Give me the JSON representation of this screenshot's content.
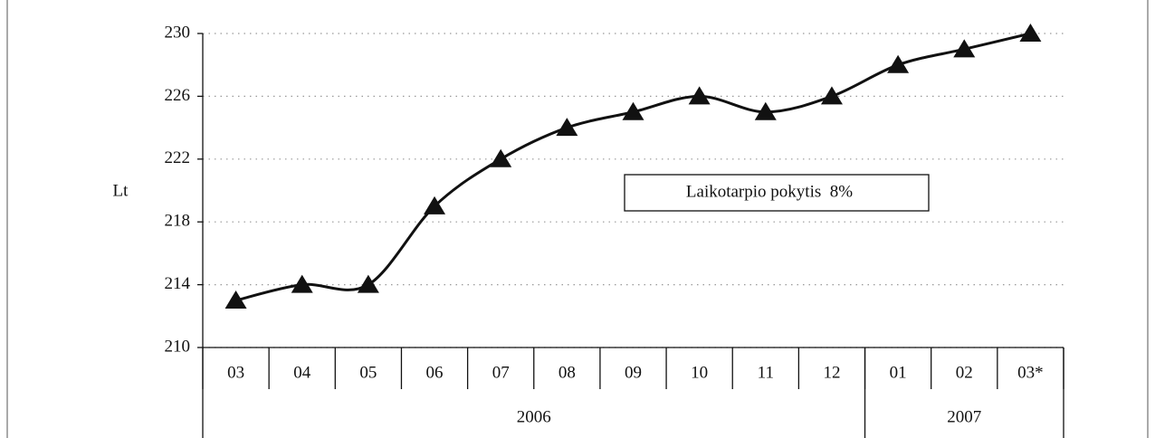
{
  "chart_data": {
    "type": "line",
    "y_label": "Lt",
    "annotation": "Laikotarpio pokytis  8%",
    "categories": [
      "03",
      "04",
      "05",
      "06",
      "07",
      "08",
      "09",
      "10",
      "11",
      "12",
      "01",
      "02",
      "03*"
    ],
    "groups": [
      {
        "label": "2006",
        "span": 10
      },
      {
        "label": "2007",
        "span": 3
      }
    ],
    "series": [
      {
        "color": "#111111",
        "marker": "triangle",
        "smooth": true,
        "values": [
          213,
          214,
          214,
          219,
          222,
          224,
          225,
          226,
          225,
          226,
          228,
          229,
          230
        ]
      }
    ],
    "ylim": [
      210,
      230
    ],
    "yticks": [
      210,
      214,
      218,
      222,
      226,
      230
    ],
    "grid": true
  }
}
